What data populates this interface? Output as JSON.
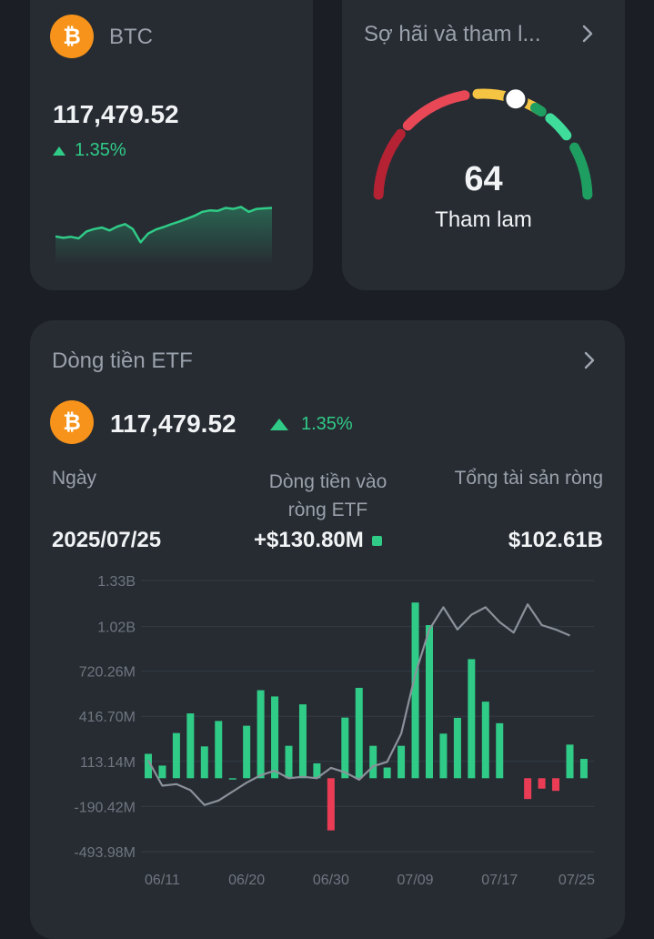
{
  "btc_card": {
    "symbol": "BTC",
    "price": "117,479.52",
    "change": "1.35%",
    "sparkline": [
      0.3,
      0.27,
      0.29,
      0.26,
      0.4,
      0.45,
      0.48,
      0.42,
      0.5,
      0.55,
      0.45,
      0.18,
      0.36,
      0.44,
      0.49,
      0.55,
      0.6,
      0.66,
      0.72,
      0.8,
      0.83,
      0.82,
      0.88,
      0.86,
      0.9,
      0.8,
      0.86,
      0.87,
      0.88
    ]
  },
  "fear_greed": {
    "title": "Sợ hãi và tham l...",
    "value": "64",
    "value_num": 64,
    "label": "Tham lam",
    "colors": [
      "#b52233",
      "#e84856",
      "#f5c443",
      "#3fdc9b",
      "#1f9e61"
    ]
  },
  "etf": {
    "title": "Dòng tiền ETF",
    "price": "117,479.52",
    "change": "1.35%",
    "col_date_label": "Ngày",
    "col_flow_label_1": "Dòng tiền vào",
    "col_flow_label_2": "ròng ETF",
    "col_assets_label": "Tổng tài sản ròng",
    "date": "2025/07/25",
    "flow": "+$130.80M",
    "assets": "$102.61B"
  },
  "chart_data": {
    "type": "bar",
    "y_ticks": [
      "1.33B",
      "1.02B",
      "720.26M",
      "416.70M",
      "113.14M",
      "-190.42M",
      "-493.98M"
    ],
    "y_tick_values": [
      1330,
      1020,
      720.26,
      416.7,
      113.14,
      -190.42,
      -493.98
    ],
    "x_ticks": [
      "06/11",
      "06/20",
      "06/30",
      "07/09",
      "07/17",
      "07/25"
    ],
    "x_tick_bars": [
      1,
      7,
      13,
      19,
      25,
      31
    ],
    "bar_values_musd": [
      164,
      85,
      304,
      436,
      214,
      385,
      0,
      353,
      592,
      550,
      218,
      497,
      100,
      -351,
      408,
      608,
      218,
      72,
      218,
      1182,
      1030,
      300,
      406,
      801,
      515,
      370,
      null,
      -140,
      -70,
      -85,
      226,
      130
    ],
    "asset_line_scaled": [
      120,
      -50,
      -40,
      -80,
      -180,
      -150,
      -90,
      -30,
      20,
      50,
      0,
      10,
      0,
      70,
      40,
      -10,
      80,
      110,
      300,
      700,
      1000,
      1150,
      1000,
      1100,
      1150,
      1050,
      980,
      1170,
      1030,
      1000,
      960
    ],
    "colors": {
      "positive": "#2fcb87",
      "negative": "#ea3d55",
      "line": "#8b919a"
    }
  }
}
